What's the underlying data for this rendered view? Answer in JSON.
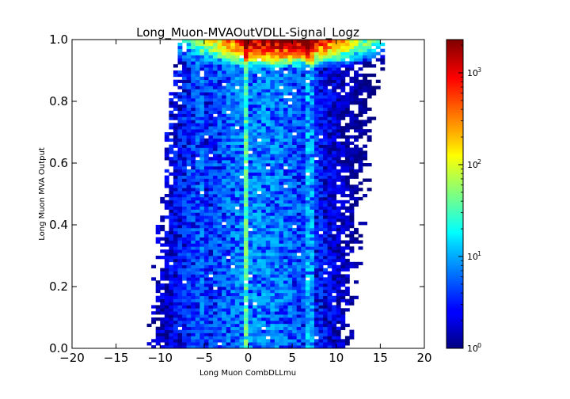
{
  "chart_data": {
    "type": "heatmap",
    "title": "Long_Muon-MVAOutVDLL-Signal_Logz",
    "xlabel": "Long Muon CombDLLmu",
    "ylabel": "Long Muon MVA Output",
    "xlim": [
      -20,
      20
    ],
    "ylim": [
      0.0,
      1.0
    ],
    "x_ticks": [
      -20,
      -15,
      -10,
      -5,
      0,
      5,
      10,
      15,
      20
    ],
    "x_tick_labels": [
      "−20",
      "−15",
      "−10",
      "−5",
      "0",
      "5",
      "10",
      "15",
      "20"
    ],
    "y_ticks": [
      0.0,
      0.2,
      0.4,
      0.6,
      0.8,
      1.0
    ],
    "y_tick_labels": [
      "0.0",
      "0.2",
      "0.4",
      "0.6",
      "0.8",
      "1.0"
    ],
    "colorscale": "jet",
    "color_scale_type": "log",
    "color_range": [
      1,
      2300
    ],
    "colorbar_ticks": [
      {
        "value": 1,
        "base": "10",
        "exp": "0"
      },
      {
        "value": 10,
        "base": "10",
        "exp": "1"
      },
      {
        "value": 100,
        "base": "10",
        "exp": "2"
      },
      {
        "value": 1000,
        "base": "10",
        "exp": "3"
      }
    ],
    "bins": {
      "x_count": 80,
      "y_count": 100
    },
    "grid": false
  }
}
